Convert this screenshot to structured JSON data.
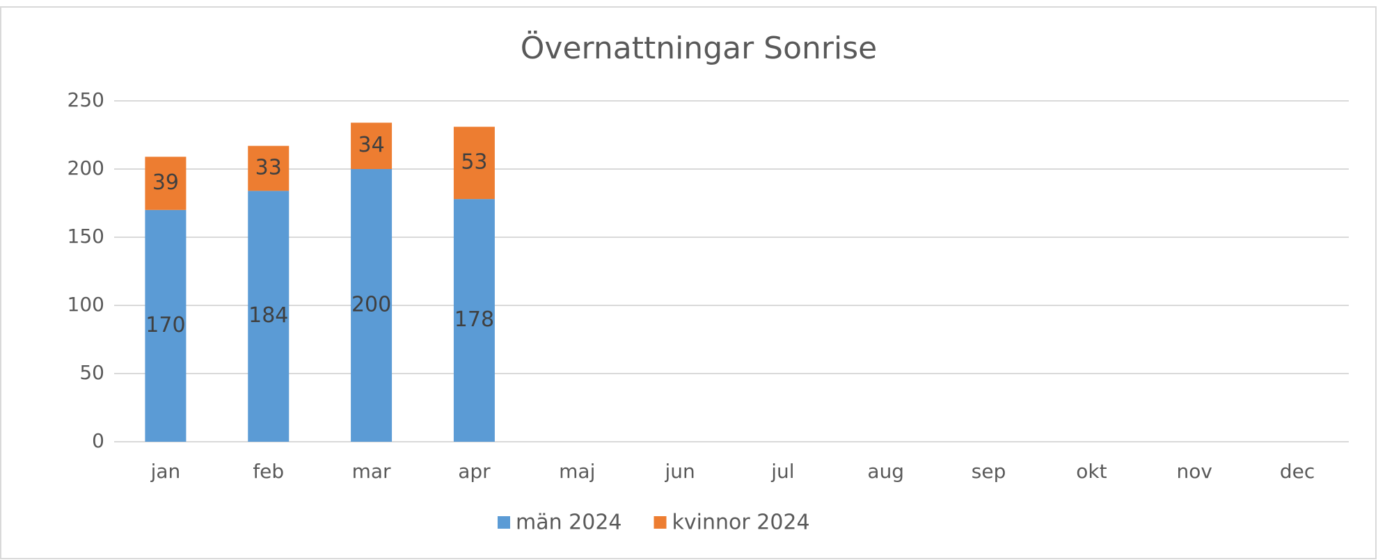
{
  "chart_data": {
    "type": "stacked_bar",
    "title": "Övernattningar Sonrise",
    "categories": [
      "jan",
      "feb",
      "mar",
      "apr",
      "maj",
      "jun",
      "jul",
      "aug",
      "sep",
      "okt",
      "nov",
      "dec"
    ],
    "series": [
      {
        "name": "män 2024",
        "color": "#5b9bd5",
        "values": [
          170,
          184,
          200,
          178,
          null,
          null,
          null,
          null,
          null,
          null,
          null,
          null
        ]
      },
      {
        "name": "kvinnor 2024",
        "color": "#ed7d31",
        "values": [
          39,
          33,
          34,
          53,
          null,
          null,
          null,
          null,
          null,
          null,
          null,
          null
        ]
      }
    ],
    "ylim": [
      0,
      250
    ],
    "yticks": [
      0,
      50,
      100,
      150,
      200,
      250
    ],
    "grid": true,
    "legend": "bottom"
  }
}
